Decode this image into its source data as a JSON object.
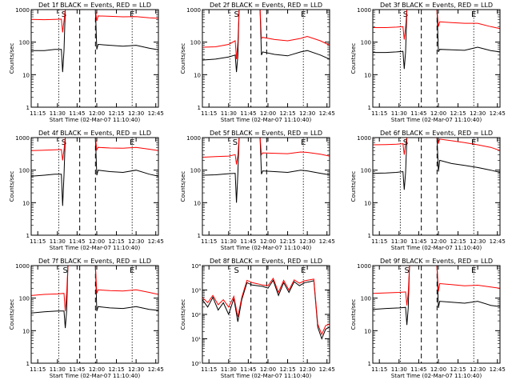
{
  "chart_data": [
    {
      "type": "line",
      "title": "Det 1f BLACK = Events, RED = LLD",
      "xlabel": "Start Time (02-Mar-07 11:10:40)",
      "ylabel": "Counts/sec",
      "scale": "log",
      "ylim": [
        1,
        1000
      ],
      "yticks": [
        "1",
        "10",
        "100",
        "1000"
      ],
      "xticks": [
        "11:15",
        "11:30",
        "11:45",
        "12:00",
        "12:15",
        "12:30",
        "12:45"
      ],
      "xtick_min": [
        5,
        20,
        35,
        50,
        65,
        80,
        95
      ],
      "xlim": [
        0,
        97
      ],
      "s_label": "S",
      "e_label": "E",
      "events_min": [
        21,
        37,
        49,
        77
      ],
      "s_marker_min": 25,
      "e_marker_min": 77,
      "series": [
        {
          "color": "#000000",
          "x": [
            0,
            10,
            18,
            23,
            24,
            25,
            26,
            49,
            50,
            51,
            60,
            70,
            80,
            90,
            97
          ],
          "values": [
            55,
            55,
            60,
            60,
            12,
            55,
            1000,
            1000,
            60,
            85,
            80,
            75,
            80,
            65,
            58
          ]
        },
        {
          "color": "#ff0000",
          "x": [
            0,
            10,
            18,
            23,
            24,
            25,
            26,
            49,
            50,
            51,
            60,
            70,
            80,
            90,
            97
          ],
          "values": [
            500,
            490,
            500,
            510,
            200,
            450,
            1000,
            1000,
            450,
            640,
            620,
            600,
            610,
            560,
            540
          ]
        }
      ]
    },
    {
      "type": "line",
      "title": "Det 2f BLACK = Events, RED = LLD",
      "xlabel": "Start Time (02-Mar-07 11:10:40)",
      "ylabel": "Counts/sec",
      "scale": "log",
      "ylim": [
        1,
        1000
      ],
      "yticks": [
        "1",
        "10",
        "100",
        "1000"
      ],
      "xticks": [
        "11:15",
        "11:30",
        "11:45",
        "12:00",
        "12:15",
        "12:30",
        "12:45"
      ],
      "xtick_min": [
        5,
        20,
        35,
        50,
        65,
        80,
        95
      ],
      "xlim": [
        0,
        97
      ],
      "s_label": "S",
      "e_label": "E",
      "events_min": [
        21,
        37,
        49,
        77
      ],
      "s_marker_min": 26,
      "e_marker_min": 77,
      "series": [
        {
          "color": "#000000",
          "x": [
            0,
            10,
            20,
            25,
            26,
            27,
            28,
            44,
            45,
            46,
            55,
            65,
            75,
            80,
            90,
            97
          ],
          "values": [
            28,
            30,
            35,
            40,
            12,
            38,
            1000,
            1000,
            40,
            50,
            42,
            38,
            50,
            55,
            40,
            30
          ]
        },
        {
          "color": "#ff0000",
          "x": [
            0,
            10,
            20,
            25,
            26,
            27,
            28,
            44,
            45,
            46,
            55,
            65,
            75,
            80,
            90,
            97
          ],
          "values": [
            70,
            72,
            85,
            110,
            30,
            100,
            1000,
            1000,
            130,
            140,
            120,
            110,
            130,
            150,
            110,
            80
          ]
        }
      ]
    },
    {
      "type": "line",
      "title": "Det 3f BLACK = Events, RED = LLD",
      "xlabel": "Start Time (02-Mar-07 11:10:40)",
      "ylabel": "Counts/sec",
      "scale": "log",
      "ylim": [
        1,
        1000
      ],
      "yticks": [
        "1",
        "10",
        "100",
        "1000"
      ],
      "xticks": [
        "11:15",
        "11:30",
        "11:45",
        "12:00",
        "12:15",
        "12:30",
        "12:45"
      ],
      "xtick_min": [
        5,
        20,
        35,
        50,
        65,
        80,
        95
      ],
      "xlim": [
        0,
        97
      ],
      "s_label": "S",
      "e_label": "E",
      "events_min": [
        21,
        37,
        49,
        77
      ],
      "s_marker_min": 25,
      "e_marker_min": 77,
      "series": [
        {
          "color": "#000000",
          "x": [
            0,
            10,
            18,
            23,
            24,
            25,
            26,
            49,
            50,
            51,
            60,
            70,
            80,
            90,
            97
          ],
          "values": [
            48,
            48,
            50,
            52,
            15,
            50,
            1000,
            1000,
            50,
            60,
            58,
            56,
            70,
            55,
            50
          ]
        },
        {
          "color": "#ff0000",
          "x": [
            0,
            10,
            18,
            23,
            24,
            25,
            26,
            49,
            50,
            51,
            60,
            70,
            80,
            90,
            97
          ],
          "values": [
            280,
            280,
            290,
            300,
            120,
            290,
            1000,
            1000,
            300,
            420,
            400,
            380,
            380,
            300,
            260
          ]
        }
      ]
    },
    {
      "type": "line",
      "title": "Det 4f BLACK = Events, RED = LLD",
      "xlabel": "Start Time (02-Mar-07 11:10:40)",
      "ylabel": "Counts/sec",
      "scale": "log",
      "ylim": [
        1,
        1000
      ],
      "yticks": [
        "1",
        "10",
        "100",
        "1000"
      ],
      "xticks": [
        "11:15",
        "11:30",
        "11:45",
        "12:00",
        "12:15",
        "12:30",
        "12:45"
      ],
      "xtick_min": [
        5,
        20,
        35,
        50,
        65,
        80,
        95
      ],
      "xlim": [
        0,
        97
      ],
      "s_label": "S",
      "e_label": "E",
      "events_min": [
        21,
        37,
        49,
        77
      ],
      "s_marker_min": 25,
      "e_marker_min": 77,
      "series": [
        {
          "color": "#000000",
          "x": [
            0,
            10,
            18,
            23,
            24,
            25,
            26,
            49,
            50,
            51,
            60,
            70,
            80,
            90,
            97
          ],
          "values": [
            65,
            70,
            75,
            75,
            8,
            70,
            1000,
            1000,
            70,
            100,
            90,
            85,
            100,
            75,
            65
          ]
        },
        {
          "color": "#ff0000",
          "x": [
            0,
            10,
            18,
            23,
            24,
            25,
            26,
            49,
            50,
            51,
            60,
            70,
            80,
            90,
            97
          ],
          "values": [
            400,
            410,
            420,
            430,
            200,
            420,
            1000,
            1000,
            420,
            500,
            480,
            470,
            500,
            440,
            400
          ]
        }
      ]
    },
    {
      "type": "line",
      "title": "Det 5f BLACK = Events, RED = LLD",
      "xlabel": "Start Time (02-Mar-07 11:10:40)",
      "ylabel": "Counts/sec",
      "scale": "log",
      "ylim": [
        1,
        1000
      ],
      "yticks": [
        "1",
        "10",
        "100",
        "1000"
      ],
      "xticks": [
        "11:15",
        "11:30",
        "11:45",
        "12:00",
        "12:15",
        "12:30",
        "12:45"
      ],
      "xtick_min": [
        5,
        20,
        35,
        50,
        65,
        80,
        95
      ],
      "xlim": [
        0,
        97
      ],
      "s_label": "S",
      "e_label": "E",
      "events_min": [
        21,
        37,
        49,
        77
      ],
      "s_marker_min": 25,
      "e_marker_min": 77,
      "series": [
        {
          "color": "#000000",
          "x": [
            0,
            10,
            20,
            25,
            26,
            27,
            28,
            44,
            45,
            46,
            55,
            65,
            75,
            80,
            90,
            97
          ],
          "values": [
            70,
            72,
            78,
            80,
            10,
            75,
            1000,
            1000,
            75,
            95,
            90,
            85,
            100,
            95,
            80,
            72
          ]
        },
        {
          "color": "#ff0000",
          "x": [
            0,
            10,
            20,
            25,
            26,
            27,
            28,
            44,
            45,
            46,
            55,
            65,
            75,
            80,
            90,
            97
          ],
          "values": [
            250,
            260,
            270,
            300,
            150,
            280,
            1000,
            1000,
            300,
            340,
            330,
            320,
            360,
            350,
            310,
            270
          ]
        }
      ]
    },
    {
      "type": "line",
      "title": "Det 6f BLACK = Events, RED = LLD",
      "xlabel": "Start Time (02-Mar-07 11:10:40)",
      "ylabel": "Counts/sec",
      "scale": "log",
      "ylim": [
        1,
        1000
      ],
      "yticks": [
        "1",
        "10",
        "100",
        "1000"
      ],
      "xticks": [
        "11:15",
        "11:30",
        "11:45",
        "12:00",
        "12:15",
        "12:30",
        "12:45"
      ],
      "xtick_min": [
        5,
        20,
        35,
        50,
        65,
        80,
        95
      ],
      "xlim": [
        0,
        97
      ],
      "s_label": "S",
      "e_label": "E",
      "events_min": [
        21,
        37,
        49,
        77
      ],
      "s_marker_min": 25,
      "e_marker_min": 77,
      "series": [
        {
          "color": "#000000",
          "x": [
            0,
            10,
            18,
            23,
            24,
            25,
            26,
            49,
            50,
            51,
            60,
            70,
            80,
            90,
            97
          ],
          "values": [
            80,
            82,
            85,
            90,
            25,
            85,
            1000,
            1000,
            90,
            200,
            160,
            140,
            120,
            100,
            85
          ]
        },
        {
          "color": "#ff0000",
          "x": [
            0,
            10,
            18,
            23,
            24,
            25,
            26,
            49,
            50,
            51,
            60,
            70,
            80,
            90,
            97
          ],
          "values": [
            600,
            610,
            630,
            650,
            300,
            640,
            1000,
            1000,
            650,
            900,
            800,
            700,
            600,
            500,
            400
          ]
        }
      ]
    },
    {
      "type": "line",
      "title": "Det 7f BLACK = Events, RED = LLD",
      "xlabel": "Start Time (02-Mar-07 11:10:40)",
      "ylabel": "Counts/sec",
      "scale": "log",
      "ylim": [
        1,
        1000
      ],
      "yticks": [
        "1",
        "10",
        "100",
        "1000"
      ],
      "xticks": [
        "11:15",
        "11:30",
        "11:45",
        "12:00",
        "12:15",
        "12:30",
        "12:45"
      ],
      "xtick_min": [
        5,
        20,
        35,
        50,
        65,
        80,
        95
      ],
      "xlim": [
        0,
        97
      ],
      "s_label": "S",
      "e_label": "E",
      "events_min": [
        21,
        37,
        49,
        77
      ],
      "s_marker_min": 26,
      "e_marker_min": 77,
      "series": [
        {
          "color": "#000000",
          "x": [
            0,
            10,
            20,
            25,
            26,
            27,
            28,
            49,
            50,
            51,
            60,
            70,
            80,
            90,
            97
          ],
          "values": [
            35,
            38,
            40,
            40,
            12,
            40,
            1000,
            1000,
            40,
            55,
            50,
            48,
            55,
            45,
            42
          ]
        },
        {
          "color": "#ff0000",
          "x": [
            0,
            10,
            20,
            25,
            26,
            27,
            28,
            49,
            50,
            51,
            60,
            70,
            80,
            90,
            97
          ],
          "values": [
            120,
            130,
            135,
            140,
            40,
            135,
            1000,
            1000,
            140,
            180,
            170,
            165,
            180,
            150,
            130
          ]
        }
      ]
    },
    {
      "type": "line",
      "title": "Det 8f BLACK = Events, RED = LLD",
      "xlabel": "Start Time (02-Mar-07 11:10:40)",
      "ylabel": "Counts/sec",
      "scale": "log",
      "ylim": [
        1,
        10000
      ],
      "yticks": [
        "10⁰",
        "10¹",
        "10²",
        "10³",
        "10⁴"
      ],
      "xticks": [
        "11:15",
        "11:30",
        "11:45",
        "12:00",
        "12:15",
        "12:30",
        "12:45"
      ],
      "xtick_min": [
        5,
        20,
        35,
        50,
        65,
        80,
        95
      ],
      "xlim": [
        0,
        97
      ],
      "s_label": "S",
      "e_label": "E",
      "events_min": [
        21,
        37,
        49,
        77
      ],
      "s_marker_min": 26,
      "e_marker_min": 77,
      "series": [
        {
          "color": "#000000",
          "x": [
            0,
            4,
            8,
            12,
            16,
            20,
            24,
            27,
            30,
            34,
            38,
            42,
            46,
            50,
            54,
            58,
            62,
            66,
            70,
            74,
            78,
            82,
            85,
            88,
            91,
            94,
            97
          ],
          "values": [
            400,
            200,
            500,
            150,
            300,
            100,
            450,
            50,
            400,
            2000,
            1600,
            1500,
            1400,
            1200,
            2500,
            600,
            2000,
            800,
            2200,
            1500,
            2000,
            2200,
            2400,
            30,
            10,
            25,
            30
          ]
        },
        {
          "color": "#ff0000",
          "x": [
            0,
            4,
            8,
            12,
            16,
            20,
            24,
            27,
            30,
            34,
            38,
            42,
            46,
            50,
            54,
            58,
            62,
            66,
            70,
            74,
            78,
            82,
            85,
            88,
            91,
            94,
            97
          ],
          "values": [
            500,
            300,
            600,
            250,
            400,
            200,
            550,
            80,
            500,
            2500,
            2000,
            1800,
            1600,
            1500,
            3000,
            800,
            2500,
            1000,
            2600,
            1900,
            2400,
            2600,
            2800,
            40,
            15,
            35,
            40
          ]
        }
      ]
    },
    {
      "type": "line",
      "title": "Det 9f BLACK = Events, RED = LLD",
      "xlabel": "Start Time (02-Mar-07 11:10:40)",
      "ylabel": "Counts/sec",
      "scale": "log",
      "ylim": [
        1,
        1000
      ],
      "yticks": [
        "1",
        "10",
        "100",
        "1000"
      ],
      "xticks": [
        "11:15",
        "11:30",
        "11:45",
        "12:00",
        "12:15",
        "12:30",
        "12:45"
      ],
      "xtick_min": [
        5,
        20,
        35,
        50,
        65,
        80,
        95
      ],
      "xlim": [
        0,
        97
      ],
      "s_label": "S",
      "e_label": "E",
      "events_min": [
        21,
        37,
        49,
        77
      ],
      "s_marker_min": 26,
      "e_marker_min": 77,
      "series": [
        {
          "color": "#000000",
          "x": [
            0,
            10,
            20,
            25,
            26,
            27,
            28,
            49,
            50,
            51,
            60,
            70,
            80,
            90,
            97
          ],
          "values": [
            45,
            48,
            50,
            52,
            15,
            50,
            1000,
            1000,
            50,
            80,
            75,
            70,
            80,
            60,
            55
          ]
        },
        {
          "color": "#ff0000",
          "x": [
            0,
            10,
            20,
            25,
            26,
            27,
            28,
            49,
            50,
            51,
            60,
            70,
            80,
            90,
            97
          ],
          "values": [
            140,
            145,
            150,
            155,
            60,
            150,
            1000,
            1000,
            160,
            280,
            260,
            240,
            250,
            220,
            200
          ]
        }
      ]
    }
  ]
}
